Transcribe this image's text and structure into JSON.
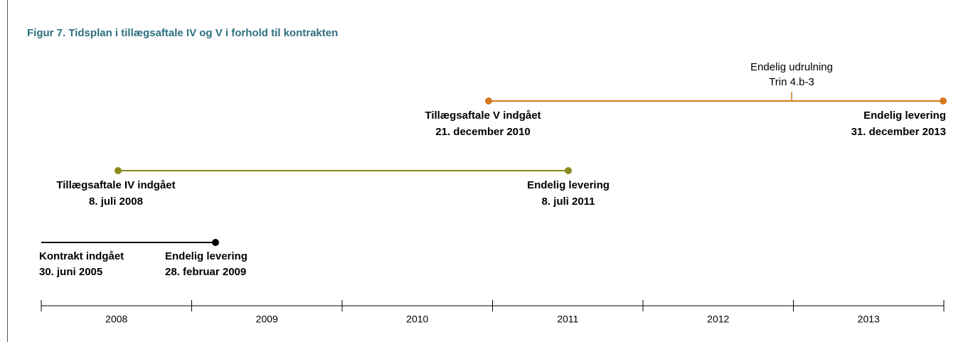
{
  "title": "Figur 7. Tidsplan i tillægsaftale IV og V i forhold til kontrakten",
  "timelines": [
    {
      "start": {
        "label": "Tillægsaftale V indgået",
        "date": "21. december 2010"
      },
      "end": {
        "label": "Endelig levering",
        "date": "31. december 2013"
      },
      "milestone": {
        "label": "Endelig udrulning",
        "detail": "Trin 4.b-3"
      }
    },
    {
      "start": {
        "label": "Tillægsaftale IV indgået",
        "date": "8. juli 2008"
      },
      "end": {
        "label": "Endelig levering",
        "date": "8. juli 2011"
      }
    },
    {
      "start": {
        "label": "Kontrakt indgået",
        "date": "30. juni 2005"
      },
      "end": {
        "label": "Endelig levering",
        "date": "28. februar 2009"
      }
    }
  ],
  "years": [
    "2008",
    "2009",
    "2010",
    "2011",
    "2012",
    "2013"
  ]
}
